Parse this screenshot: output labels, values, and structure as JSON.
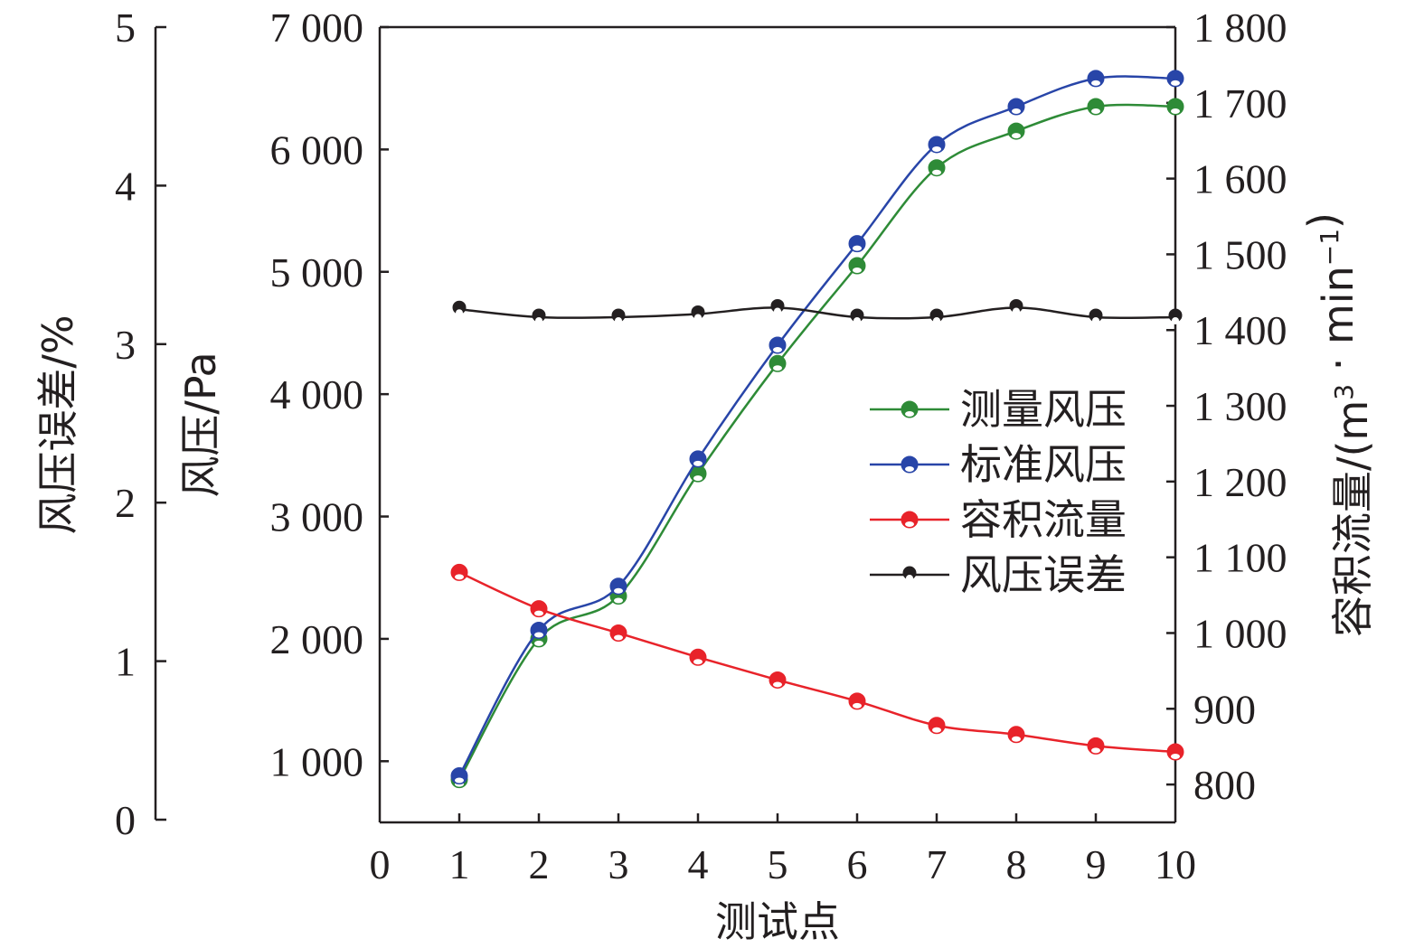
{
  "chart_data": {
    "type": "line",
    "xlabel": "测试点",
    "x_ticks": [
      "0",
      "1",
      "2",
      "3",
      "4",
      "5",
      "6",
      "7",
      "8",
      "9",
      "10"
    ],
    "xlim": [
      0,
      10
    ],
    "x": [
      1,
      2,
      3,
      4,
      5,
      6,
      7,
      8,
      9,
      10
    ],
    "axes": {
      "left_outer": {
        "label": "风压误差/%",
        "ylim": [
          0,
          5
        ],
        "ticks": [
          0,
          1,
          2,
          3,
          4,
          5
        ],
        "tick_labels": [
          "0",
          "1",
          "2",
          "3",
          "4",
          "5"
        ]
      },
      "left_inner": {
        "label": "风压/Pa",
        "ylim": [
          500,
          7000
        ],
        "ticks": [
          1000,
          2000,
          3000,
          4000,
          5000,
          6000,
          7000
        ],
        "tick_labels": [
          "1 000",
          "2 000",
          "3 000",
          "4 000",
          "5 000",
          "6 000",
          "7 000"
        ]
      },
      "right": {
        "label": "容积流量/(m",
        "label_sup": "3",
        "label_mid": " · min",
        "label_sup2": "−1",
        "label_end": ")",
        "ylim": [
          750,
          1800
        ],
        "ticks": [
          800,
          900,
          1000,
          1100,
          1200,
          1300,
          1400,
          1500,
          1600,
          1700,
          1800
        ],
        "tick_labels": [
          "800",
          "900",
          "1 000",
          "1 100",
          "1 200",
          "1 300",
          "1 400",
          "1 500",
          "1 600",
          "1 700",
          "1 800"
        ]
      }
    },
    "series": [
      {
        "name": "测量风压",
        "axis": "left_inner",
        "color": "#2e8b37",
        "marker": "circle",
        "values": [
          850,
          2000,
          2350,
          3350,
          4250,
          5050,
          5850,
          6150,
          6350,
          6350
        ]
      },
      {
        "name": "标准风压",
        "axis": "left_inner",
        "color": "#2845a8",
        "marker": "circle",
        "values": [
          880,
          2070,
          2430,
          3470,
          4400,
          5230,
          6040,
          6350,
          6580,
          6580
        ]
      },
      {
        "name": "容积流量",
        "axis": "right",
        "color": "#e8232a",
        "marker": "circle",
        "values": [
          1080,
          1032,
          1000,
          968,
          938,
          910,
          878,
          866,
          851,
          843
        ]
      },
      {
        "name": "风压误差",
        "axis": "left_outer",
        "color": "#231f20",
        "marker": "dot",
        "values": [
          3.22,
          3.17,
          3.17,
          3.19,
          3.23,
          3.17,
          3.17,
          3.23,
          3.17,
          3.17
        ]
      }
    ],
    "legend": "right-middle",
    "grid": false
  }
}
